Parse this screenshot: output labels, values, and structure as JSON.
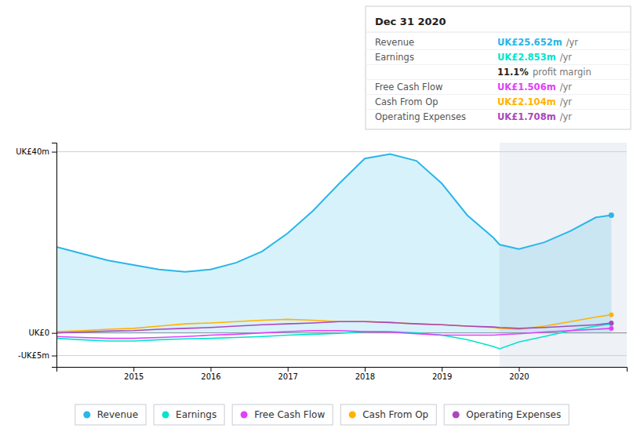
{
  "chart_data": {
    "type": "line",
    "x": [
      2014.0,
      2014.33,
      2014.67,
      2015.0,
      2015.33,
      2015.67,
      2016.0,
      2016.33,
      2016.67,
      2017.0,
      2017.33,
      2017.67,
      2018.0,
      2018.33,
      2018.67,
      2019.0,
      2019.33,
      2019.67,
      2019.75,
      2020.0,
      2020.33,
      2020.67,
      2021.0,
      2021.2
    ],
    "series": [
      {
        "name": "Revenue",
        "type": "area",
        "color": "#29b6e8",
        "values": [
          19.0,
          17.5,
          16.0,
          15.0,
          14.0,
          13.5,
          14.0,
          15.5,
          18.0,
          22.0,
          27.0,
          33.0,
          38.5,
          39.5,
          38.0,
          33.0,
          26.0,
          21.0,
          19.5,
          18.5,
          20.0,
          22.5,
          25.5,
          26.0
        ]
      },
      {
        "name": "Earnings",
        "type": "line",
        "color": "#00e5cc",
        "values": [
          -1.2,
          -1.5,
          -1.8,
          -1.8,
          -1.5,
          -1.3,
          -1.2,
          -1.0,
          -0.8,
          -0.5,
          -0.3,
          -0.1,
          0.3,
          0.3,
          0.0,
          -0.5,
          -1.5,
          -3.0,
          -3.5,
          -2.0,
          -0.8,
          0.5,
          1.5,
          2.0
        ]
      },
      {
        "name": "Free Cash Flow",
        "type": "line",
        "color": "#e040fb",
        "values": [
          -0.8,
          -1.0,
          -1.2,
          -1.2,
          -1.0,
          -0.8,
          -0.5,
          -0.3,
          0.0,
          0.3,
          0.5,
          0.5,
          0.3,
          0.2,
          -0.2,
          -0.5,
          -0.5,
          -0.5,
          -0.4,
          -0.2,
          0.2,
          0.5,
          0.8,
          1.0
        ]
      },
      {
        "name": "Cash From Op",
        "type": "line",
        "color": "#ffb300",
        "values": [
          0.3,
          0.5,
          0.8,
          1.0,
          1.5,
          2.0,
          2.2,
          2.5,
          2.8,
          3.0,
          2.8,
          2.5,
          2.5,
          2.3,
          2.0,
          1.8,
          1.5,
          1.2,
          1.0,
          0.8,
          1.5,
          2.5,
          3.5,
          4.0
        ]
      },
      {
        "name": "Operating Expenses",
        "type": "line",
        "color": "#ab47bc",
        "values": [
          0.0,
          0.2,
          0.4,
          0.5,
          0.8,
          1.0,
          1.2,
          1.5,
          1.8,
          2.0,
          2.2,
          2.5,
          2.5,
          2.3,
          2.0,
          1.8,
          1.5,
          1.3,
          1.2,
          1.0,
          1.2,
          1.5,
          1.8,
          2.2
        ]
      }
    ],
    "xlim": [
      2014.0,
      2021.4
    ],
    "xticks": [
      2015,
      2016,
      2017,
      2018,
      2019,
      2020
    ],
    "ylim": [
      -7.5,
      42
    ],
    "yticks": [
      {
        "value": -5,
        "label": "-UK£5m"
      },
      {
        "value": 0,
        "label": "UK£0"
      },
      {
        "value": 40,
        "label": "UK£40m"
      }
    ],
    "grid": "y",
    "legend": "bottom",
    "forecast_start": 2019.75,
    "info_box": {
      "title": "Dec 31 2020",
      "rows": [
        {
          "label": "Revenue",
          "text": "UK£25.652m",
          "unit": "/yr",
          "color": "#29b6e8"
        },
        {
          "label": "Earnings",
          "text": "UK£2.853m",
          "unit": "/yr",
          "color": "#00e5cc"
        },
        {
          "text": "11.1%",
          "unit": "profit margin"
        },
        {
          "label": "Free Cash Flow",
          "text": "UK£1.506m",
          "unit": "/yr",
          "color": "#e040fb"
        },
        {
          "label": "Cash From Op",
          "text": "UK£2.104m",
          "unit": "/yr",
          "color": "#ffb300"
        },
        {
          "label": "Operating Expenses",
          "text": "UK£1.708m",
          "unit": "/yr",
          "color": "#ab47bc"
        }
      ]
    }
  }
}
